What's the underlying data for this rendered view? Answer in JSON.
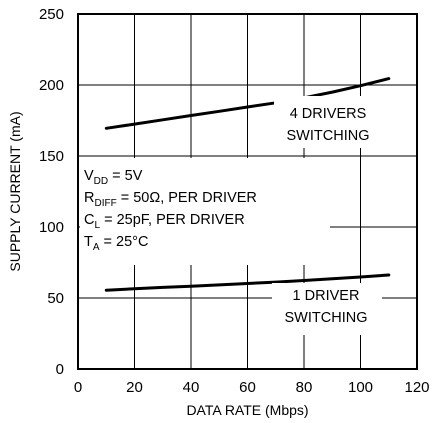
{
  "chart_data": {
    "type": "line",
    "xlabel": "DATA RATE (Mbps)",
    "ylabel": "SUPPLY CURRENT (mA)",
    "xlim": [
      0,
      120
    ],
    "ylim": [
      0,
      250
    ],
    "xticks": [
      0,
      20,
      40,
      60,
      80,
      100,
      120
    ],
    "yticks": [
      0,
      50,
      100,
      150,
      200,
      250
    ],
    "grid": true,
    "colors": {
      "line": "#000000",
      "grid": "#000000",
      "background": "#ffffff"
    },
    "series": [
      {
        "name": "4 DRIVERS SWITCHING",
        "x": [
          10,
          20,
          30,
          40,
          50,
          60,
          70,
          80,
          90,
          100,
          110
        ],
        "y": [
          169.5,
          172.5,
          175.5,
          178.5,
          181.5,
          184.5,
          187.5,
          191,
          195,
          199.5,
          204.5
        ]
      },
      {
        "name": "1 DRIVER SWITCHING",
        "x": [
          10,
          20,
          30,
          40,
          50,
          60,
          70,
          80,
          90,
          100,
          110
        ],
        "y": [
          55.5,
          56.5,
          57.5,
          58.3,
          59.2,
          60.2,
          61.2,
          62.3,
          63.5,
          64.8,
          66.2
        ]
      }
    ],
    "series_labels": [
      {
        "line1": "4 DRIVERS",
        "line2": "SWITCHING"
      },
      {
        "line1": "1 DRIVER",
        "line2": "SWITCHING"
      }
    ],
    "conditions": [
      {
        "main": "V",
        "sub": "DD",
        "rest": " = 5V"
      },
      {
        "main": "R",
        "sub": "DIFF",
        "rest": " = 50Ω, PER DRIVER"
      },
      {
        "main": "C",
        "sub": "L",
        "rest": " = 25pF, PER DRIVER"
      },
      {
        "main": "T",
        "sub": "A",
        "rest": " = 25°C"
      }
    ]
  }
}
